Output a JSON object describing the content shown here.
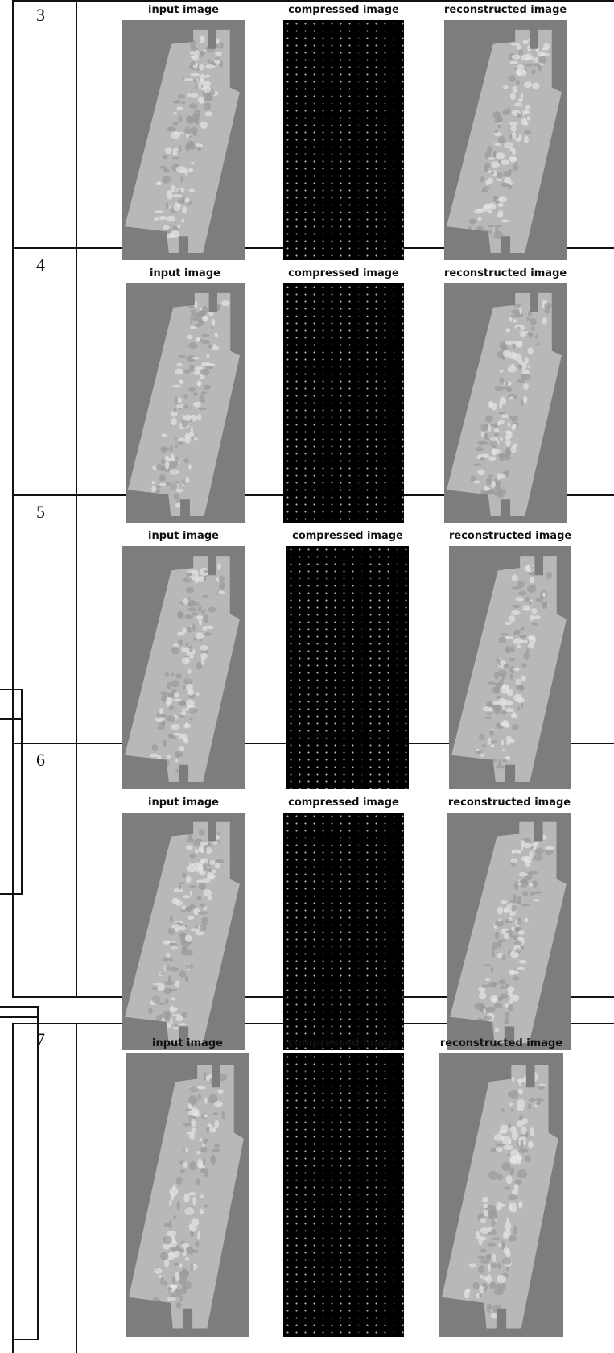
{
  "rows": [
    {
      "number": "3",
      "titles": {
        "input": "input image",
        "compressed": "compressed image",
        "reconstructed": "reconstructed image"
      }
    },
    {
      "number": "4",
      "titles": {
        "input": "input image",
        "compressed": "compressed image",
        "reconstructed": "reconstructed image"
      }
    },
    {
      "number": "5",
      "titles": {
        "input": "input image",
        "compressed": "compressed image",
        "reconstructed": "reconstructed image"
      }
    },
    {
      "number": "6",
      "titles": {
        "input": "input image",
        "compressed": "compressed image",
        "reconstructed": "reconstructed image"
      }
    },
    {
      "number": "7",
      "titles": {
        "input": "input image",
        "compressed": "compressed image",
        "reconstructed": "reconstructed image"
      }
    }
  ],
  "colors": {
    "background": "#7d7d7d",
    "strip": "#b8b8b8",
    "compressed": "#000000",
    "lines": "#111111"
  }
}
